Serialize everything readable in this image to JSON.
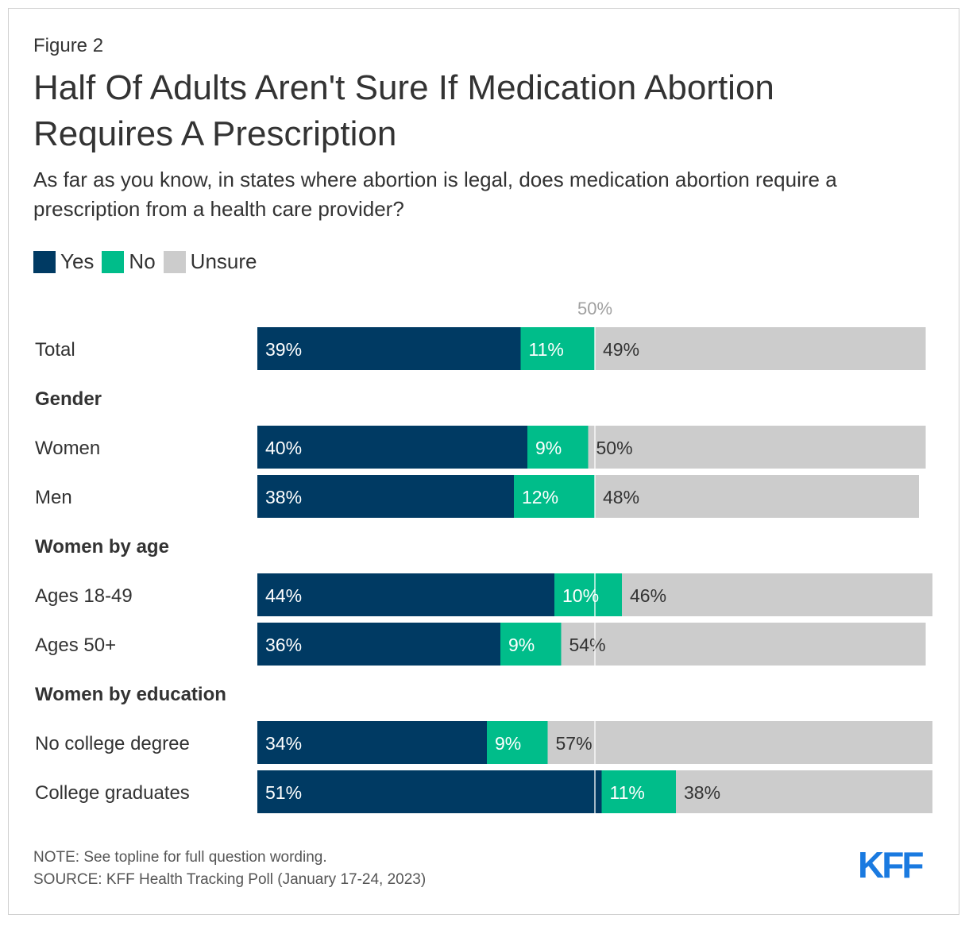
{
  "figure_label": "Figure 2",
  "title": "Half Of Adults Aren't Sure If Medication Abortion Requires A Prescription",
  "subtitle": "As far as you know, in states where abortion is legal, does medication abortion require a prescription from a health care provider?",
  "colors": {
    "yes": "#003a63",
    "no": "#00bd8a",
    "unsure": "#cccccc",
    "reference": "#ffffff",
    "logo": "#1a7ae0"
  },
  "legend": [
    {
      "key": "yes",
      "label": "Yes"
    },
    {
      "key": "no",
      "label": "No"
    },
    {
      "key": "unsure",
      "label": "Unsure"
    }
  ],
  "chart_data": {
    "type": "bar",
    "orientation": "horizontal",
    "stacked": true,
    "reference_line": {
      "value": 50,
      "label": "50%"
    },
    "series_names": [
      "Yes",
      "No",
      "Unsure"
    ],
    "rows": [
      {
        "kind": "bar",
        "label": "Total",
        "values": [
          39,
          11,
          49
        ],
        "labels": [
          "39%",
          "11%",
          "49%"
        ]
      },
      {
        "kind": "header",
        "label": "Gender"
      },
      {
        "kind": "bar",
        "label": "Women",
        "values": [
          40,
          9,
          50
        ],
        "labels": [
          "40%",
          "9%",
          "50%"
        ]
      },
      {
        "kind": "bar",
        "label": "Men",
        "values": [
          38,
          12,
          48
        ],
        "labels": [
          "38%",
          "12%",
          "48%"
        ]
      },
      {
        "kind": "header",
        "label": "Women by age"
      },
      {
        "kind": "bar",
        "label": "Ages 18-49",
        "values": [
          44,
          10,
          46
        ],
        "labels": [
          "44%",
          "10%",
          "46%"
        ]
      },
      {
        "kind": "bar",
        "label": "Ages 50+",
        "values": [
          36,
          9,
          54
        ],
        "labels": [
          "36%",
          "9%",
          "54%"
        ]
      },
      {
        "kind": "header",
        "label": "Women by education"
      },
      {
        "kind": "bar",
        "label": "No college degree",
        "values": [
          34,
          9,
          57
        ],
        "labels": [
          "34%",
          "9%",
          "57%"
        ]
      },
      {
        "kind": "bar",
        "label": "College graduates",
        "values": [
          51,
          11,
          38
        ],
        "labels": [
          "51%",
          "11%",
          "38%"
        ]
      }
    ]
  },
  "footer": {
    "note": "NOTE: See topline for full question wording.",
    "source": "SOURCE: KFF Health Tracking Poll (January 17-24, 2023)"
  },
  "logo_text": "KFF"
}
